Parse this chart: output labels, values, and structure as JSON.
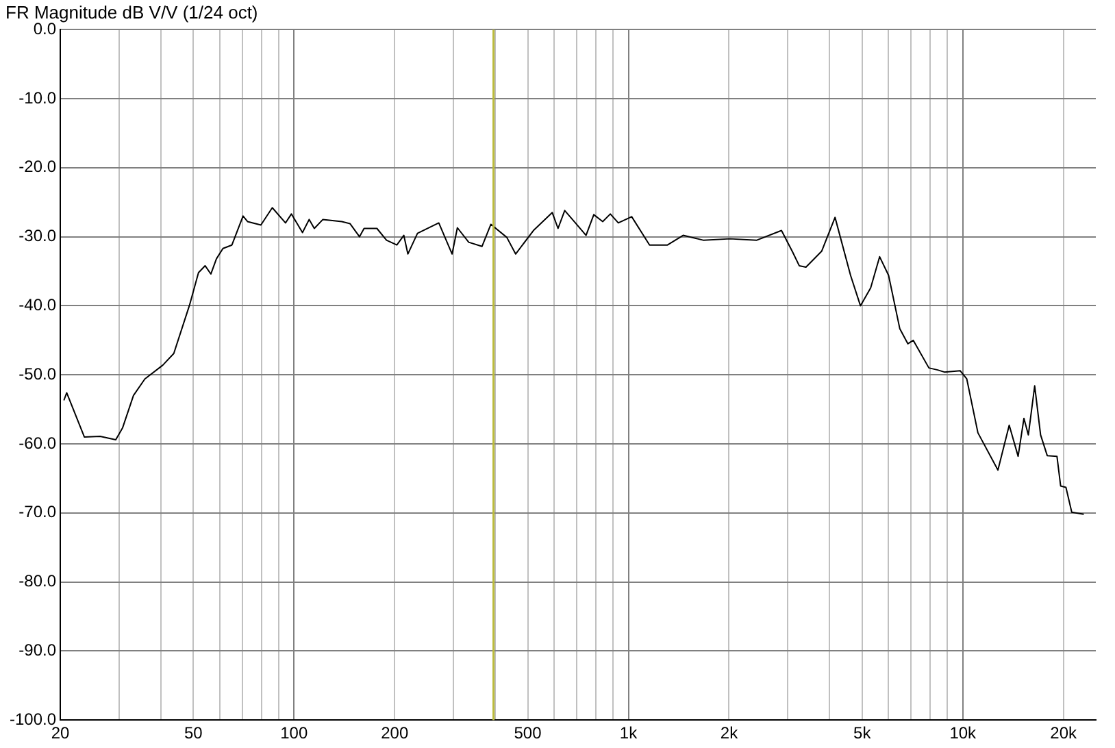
{
  "chart_data": {
    "type": "line",
    "title": "FR Magnitude dB V/V (1/24 oct)",
    "log": "x",
    "grid": true,
    "legend": false,
    "marker": "none",
    "xlim": [
      20,
      25000
    ],
    "ylim": [
      -100,
      0
    ],
    "xticks": [
      20,
      {
        "value": 30,
        "label": null
      },
      {
        "value": 40,
        "label": null
      },
      50,
      {
        "value": 60,
        "label": null
      },
      {
        "value": 70,
        "label": null
      },
      {
        "value": 80,
        "label": null
      },
      {
        "value": 90,
        "label": null
      },
      100,
      200,
      {
        "value": 300,
        "label": null
      },
      {
        "value": 400,
        "label": null
      },
      500,
      {
        "value": 600,
        "label": null
      },
      {
        "value": 700,
        "label": null
      },
      {
        "value": 800,
        "label": null
      },
      {
        "value": 900,
        "label": null
      },
      {
        "value": 1000,
        "label": "1k"
      },
      {
        "value": 2000,
        "label": "2k"
      },
      {
        "value": 3000,
        "label": null
      },
      {
        "value": 4000,
        "label": null
      },
      {
        "value": 5000,
        "label": "5k"
      },
      {
        "value": 6000,
        "label": null
      },
      {
        "value": 7000,
        "label": null
      },
      {
        "value": 8000,
        "label": null
      },
      {
        "value": 9000,
        "label": null
      },
      {
        "value": 10000,
        "label": "10k"
      },
      {
        "value": 20000,
        "label": "20k"
      }
    ],
    "yticks": [
      {
        "value": 0,
        "label": "0.0"
      },
      {
        "value": -10,
        "label": "-10.0"
      },
      {
        "value": -20,
        "label": "-20.0"
      },
      {
        "value": -30,
        "label": "-30.0"
      },
      {
        "value": -40,
        "label": "-40.0"
      },
      {
        "value": -50,
        "label": "-50.0"
      },
      {
        "value": -60,
        "label": "-60.0"
      },
      {
        "value": -70,
        "label": "-70.0"
      },
      {
        "value": -80,
        "label": "-80.0"
      },
      {
        "value": -90,
        "label": "-90.0"
      },
      {
        "value": -100,
        "label": "-100.0"
      }
    ],
    "ref_lines": [
      {
        "axis": "x",
        "value": 395,
        "color": "#bcbc3c"
      }
    ],
    "series": [
      {
        "color": "#000000",
        "x": [
          20.5,
          20.9,
          23.6,
          26.3,
          29.3,
          30.7,
          33.1,
          35.8,
          40.5,
          43.7,
          48.7,
          51.8,
          54.2,
          56.4,
          58.6,
          61.3,
          65.2,
          70.4,
          72.6,
          79.6,
          86.1,
          94.3,
          98.2,
          106,
          111,
          115,
          122,
          139,
          147,
          157,
          162,
          177,
          189,
          203,
          213,
          219,
          234,
          271,
          297,
          308,
          333,
          365,
          388,
          433,
          460,
          520,
          592,
          616,
          645,
          697,
          747,
          788,
          838,
          883,
          933,
          1023,
          1157,
          1309,
          1458,
          1674,
          2013,
          2421,
          2870,
          3097,
          3243,
          3396,
          3784,
          4150,
          4618,
          4943,
          5304,
          5642,
          6000,
          6480,
          6850,
          7110,
          7920,
          8415,
          8810,
          9820,
          10280,
          11100,
          12740,
          13770,
          14640,
          15240,
          15710,
          16410,
          17090,
          17890,
          19130,
          19620,
          20350,
          21180,
          23010
        ],
        "values": [
          -53.7,
          -52.6,
          -59.0,
          -58.9,
          -59.4,
          -57.7,
          -53.0,
          -50.6,
          -48.6,
          -46.9,
          -39.9,
          -35.2,
          -34.2,
          -35.4,
          -33.2,
          -31.7,
          -31.2,
          -27.0,
          -27.8,
          -28.3,
          -25.8,
          -28.0,
          -26.7,
          -29.4,
          -27.5,
          -28.8,
          -27.5,
          -27.8,
          -28.1,
          -30.0,
          -28.8,
          -28.8,
          -30.5,
          -31.2,
          -29.8,
          -32.5,
          -29.5,
          -28.0,
          -32.5,
          -28.7,
          -30.8,
          -31.4,
          -28.2,
          -30.1,
          -32.5,
          -29.1,
          -26.5,
          -28.8,
          -26.2,
          -28.1,
          -29.8,
          -26.8,
          -27.8,
          -26.7,
          -28.0,
          -27.1,
          -31.2,
          -31.2,
          -29.8,
          -30.5,
          -30.3,
          -30.5,
          -29.1,
          -32.2,
          -34.2,
          -34.4,
          -32.1,
          -27.2,
          -35.6,
          -40.0,
          -37.4,
          -32.9,
          -35.6,
          -43.3,
          -45.5,
          -45.0,
          -49.0,
          -49.3,
          -49.6,
          -49.4,
          -50.6,
          -58.4,
          -63.8,
          -57.3,
          -61.8,
          -56.3,
          -58.7,
          -51.6,
          -58.7,
          -61.7,
          -61.8,
          -66.1,
          -66.3,
          -69.9,
          -70.2
        ]
      }
    ]
  }
}
